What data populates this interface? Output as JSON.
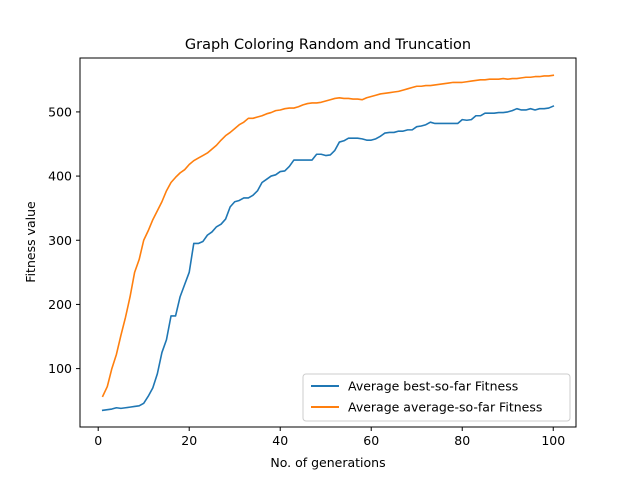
{
  "chart_data": {
    "type": "line",
    "title": "Graph Coloring Random and Truncation",
    "xlabel": "No. of generations",
    "ylabel": "Fitness value",
    "xlim": [
      -4,
      105
    ],
    "ylim": [
      9,
      584
    ],
    "xticks": [
      0,
      20,
      40,
      60,
      80,
      100
    ],
    "yticks": [
      100,
      200,
      300,
      400,
      500
    ],
    "grid": false,
    "legend_position": "lower-right",
    "x": [
      1,
      2,
      3,
      4,
      5,
      6,
      7,
      8,
      9,
      10,
      11,
      12,
      13,
      14,
      15,
      16,
      17,
      18,
      19,
      20,
      21,
      22,
      23,
      24,
      25,
      26,
      27,
      28,
      29,
      30,
      31,
      32,
      33,
      34,
      35,
      36,
      37,
      38,
      39,
      40,
      41,
      42,
      43,
      44,
      45,
      46,
      47,
      48,
      49,
      50,
      51,
      52,
      53,
      54,
      55,
      56,
      57,
      58,
      59,
      60,
      61,
      62,
      63,
      64,
      65,
      66,
      67,
      68,
      69,
      70,
      71,
      72,
      73,
      74,
      75,
      76,
      77,
      78,
      79,
      80,
      81,
      82,
      83,
      84,
      85,
      86,
      87,
      88,
      89,
      90,
      91,
      92,
      93,
      94,
      95,
      96,
      97,
      98,
      99,
      100
    ],
    "series": [
      {
        "name": "Average best-so-far Fitness",
        "color": "#1f77b4",
        "values": [
          35,
          36,
          37,
          39,
          38,
          39,
          40,
          41,
          42,
          46,
          57,
          70,
          92,
          125,
          145,
          182,
          182,
          212,
          231,
          250,
          295,
          295,
          298,
          308,
          313,
          321,
          325,
          333,
          352,
          360,
          362,
          366,
          366,
          370,
          377,
          390,
          395,
          400,
          402,
          407,
          408,
          415,
          425,
          425,
          425,
          425,
          425,
          434,
          434,
          432,
          433,
          440,
          453,
          455,
          459,
          459,
          459,
          458,
          456,
          456,
          458,
          462,
          467,
          468,
          468,
          470,
          470,
          472,
          472,
          477,
          478,
          480,
          484,
          482,
          482,
          482,
          482,
          482,
          482,
          488,
          487,
          488,
          494,
          494,
          498,
          498,
          498,
          499,
          499,
          500,
          502,
          505,
          503,
          503,
          505,
          503,
          505,
          505,
          506,
          509
        ]
      },
      {
        "name": "Average average-so-far Fitness",
        "color": "#ff7f0e",
        "values": [
          57,
          72,
          100,
          122,
          152,
          180,
          212,
          250,
          270,
          300,
          315,
          332,
          346,
          360,
          377,
          390,
          398,
          405,
          410,
          418,
          424,
          428,
          432,
          436,
          442,
          448,
          456,
          463,
          468,
          474,
          480,
          484,
          490,
          490,
          492,
          494,
          497,
          499,
          502,
          503,
          505,
          506,
          506,
          508,
          511,
          513,
          514,
          514,
          515,
          517,
          519,
          521,
          522,
          521,
          521,
          520,
          520,
          519,
          522,
          524,
          526,
          528,
          529,
          530,
          531,
          532,
          534,
          536,
          538,
          540,
          540,
          541,
          541,
          542,
          543,
          544,
          545,
          546,
          546,
          546,
          547,
          548,
          549,
          550,
          550,
          551,
          551,
          551,
          552,
          551,
          552,
          552,
          553,
          554,
          554,
          555,
          555,
          556,
          556,
          557
        ]
      }
    ]
  }
}
